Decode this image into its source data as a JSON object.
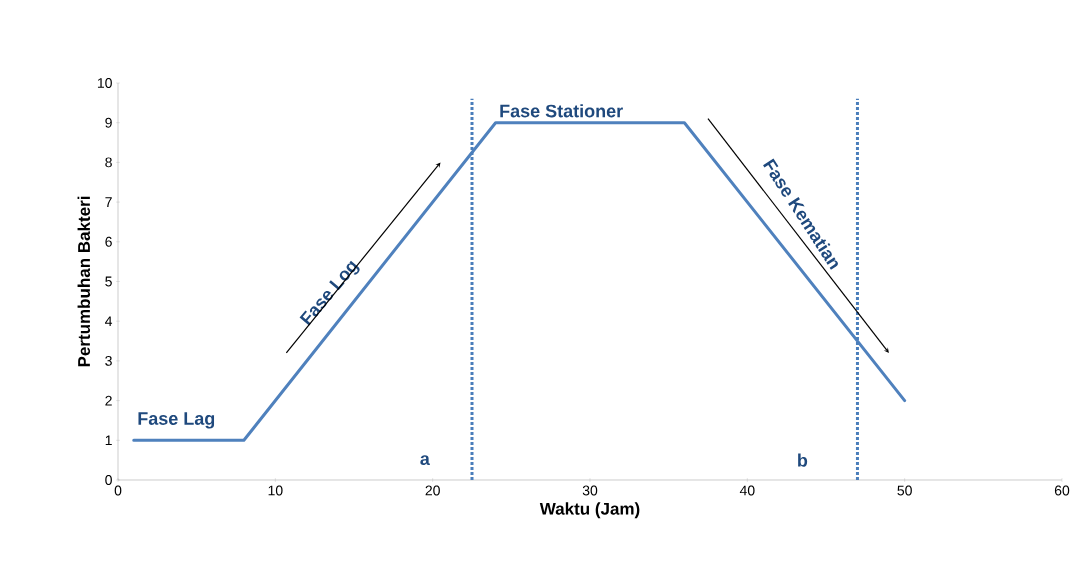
{
  "chart_data": {
    "type": "line",
    "xlabel": "Waktu (Jam)",
    "ylabel": "Pertumbuhan Bakteri",
    "x": [
      1,
      8,
      24,
      36,
      50
    ],
    "series": [
      {
        "color": "#4f81bd",
        "values": [
          1,
          1,
          9,
          9,
          2
        ]
      }
    ],
    "xlim": [
      0,
      60
    ],
    "xticks": [
      0,
      10,
      20,
      30,
      40,
      50,
      60
    ],
    "ylim": [
      0,
      10
    ],
    "yticks": [
      0,
      1,
      2,
      3,
      4,
      5,
      6,
      7,
      8,
      9,
      10
    ],
    "grid": false,
    "marker": "none",
    "line_style": "solid",
    "ref_lines": [
      {
        "axis": "x",
        "value": 22.5,
        "color": "#4a7ebb",
        "line_style": "dotted"
      },
      {
        "axis": "x",
        "value": 47,
        "color": "#4a7ebb",
        "line_style": "dotted"
      }
    ],
    "annotations": [
      "Fase Lag",
      "Fase Log",
      "Fase Stationer",
      "Fase Kematian",
      "a",
      "b"
    ]
  }
}
